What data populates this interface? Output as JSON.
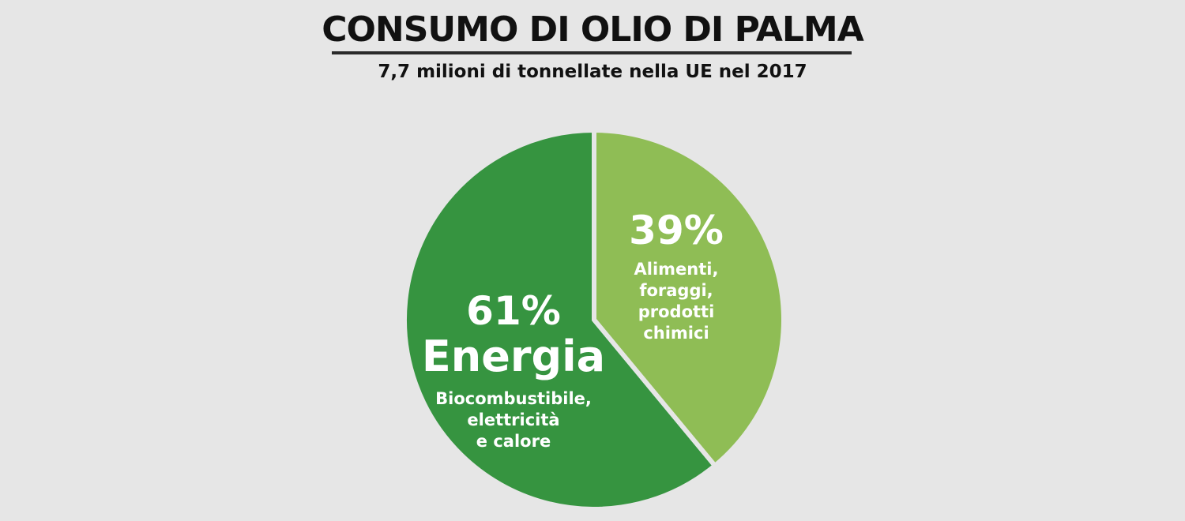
{
  "chart_data": {
    "type": "pie",
    "title": "CONSUMO DI OLIO DI PALMA",
    "subtitle": "7,7 milioni di tonnellate nella UE nel 2017",
    "slices": [
      {
        "name": "Energia",
        "value": 61,
        "label": "61%",
        "description": [
          "Biocombustibile,",
          "elettricità",
          "e calore"
        ],
        "color": "#369440"
      },
      {
        "name": "",
        "value": 39,
        "label": "39%",
        "description": [
          "Alimenti,",
          "foraggi,",
          "prodotti",
          "chimici"
        ],
        "color": "#8fbd55"
      }
    ],
    "start": "top",
    "direction": "counter-clockwise"
  },
  "colors": {
    "background": "#e6e6e6",
    "text": "#111111",
    "label_text": "#ffffff"
  }
}
